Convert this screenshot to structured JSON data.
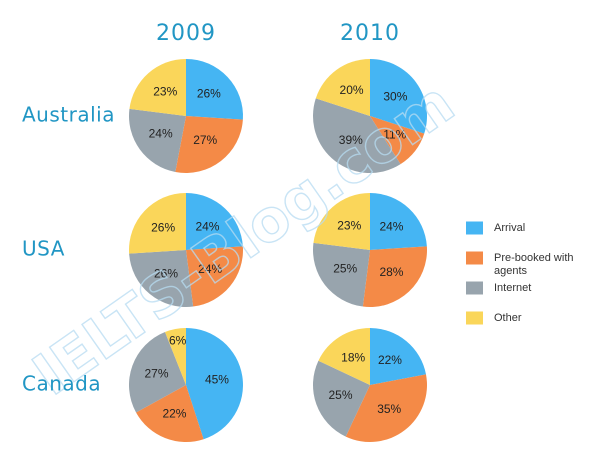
{
  "chart_data": {
    "type": "pie",
    "years": [
      "2009",
      "2010"
    ],
    "countries": [
      "Australia",
      "USA",
      "Canada"
    ],
    "categories": [
      "Arrival",
      "Pre-booked with agents",
      "Internet",
      "Other"
    ],
    "colors": [
      "#45b5f3",
      "#f48a47",
      "#98a4ad",
      "#fad65a"
    ],
    "values": {
      "Australia": {
        "2009": [
          26,
          27,
          24,
          23
        ],
        "2010": [
          30,
          11,
          39,
          20
        ]
      },
      "USA": {
        "2009": [
          24,
          24,
          26,
          26
        ],
        "2010": [
          24,
          28,
          25,
          23
        ]
      },
      "Canada": {
        "2009": [
          45,
          22,
          27,
          6
        ],
        "2010": [
          22,
          35,
          25,
          18
        ]
      }
    },
    "label_suffix": "%"
  },
  "legend": {
    "items": [
      {
        "label_lines": [
          "Arrival"
        ]
      },
      {
        "label_lines": [
          "Pre-booked with",
          "agents"
        ]
      },
      {
        "label_lines": [
          "Internet"
        ]
      },
      {
        "label_lines": [
          "Other"
        ]
      }
    ]
  },
  "watermark": {
    "text": "IELTS-Blog.com"
  }
}
